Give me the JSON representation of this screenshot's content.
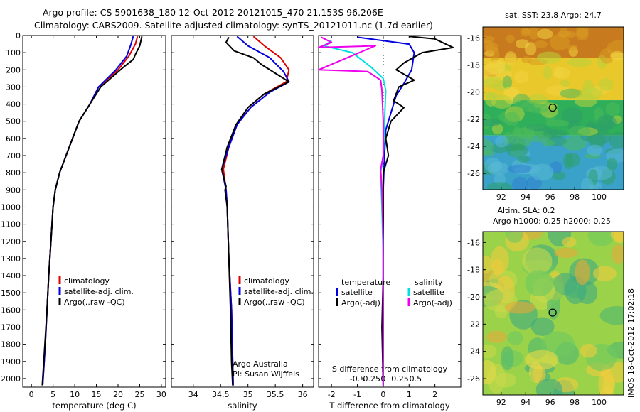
{
  "header": {
    "line1": "Argo profile: CS 5901638_180 12-Oct-2012 20121015_470 21.153S 96.206E",
    "line2": "Climatology: CARS2009. Satellite-adjusted climatology: synTS_20121011.nc (1.7d earlier)"
  },
  "stamp": "IMOS 18-Oct-2012 17:02:18",
  "chart_data": [
    {
      "type": "line",
      "panel": "temperature",
      "xlabel": "temperature (deg C)",
      "ylabel": "",
      "xlim": [
        -2,
        31
      ],
      "ylim": [
        2050,
        0
      ],
      "x_ticks": [
        0,
        5,
        10,
        15,
        20,
        25,
        30
      ],
      "y_ticks": [
        0,
        100,
        200,
        300,
        400,
        500,
        600,
        700,
        800,
        900,
        1000,
        1100,
        1200,
        1300,
        1400,
        1500,
        1600,
        1700,
        1800,
        1900,
        2000
      ],
      "legend": [
        "climatology",
        "satellite-adj. clim.",
        "Argo(..raw -QC)"
      ],
      "legend_position": "bottom-center",
      "series": [
        {
          "name": "climatology",
          "color": "#e00000",
          "points": [
            [
              24.5,
              5
            ],
            [
              24,
              50
            ],
            [
              22.5,
              120
            ],
            [
              20,
              200
            ],
            [
              15.5,
              300
            ],
            [
              13.5,
              400
            ],
            [
              11,
              500
            ],
            [
              9.5,
              600
            ],
            [
              8,
              700
            ],
            [
              6.5,
              800
            ],
            [
              5.5,
              900
            ],
            [
              5,
              1000
            ],
            [
              4.5,
              1200
            ],
            [
              4,
              1400
            ],
            [
              3.6,
              1600
            ],
            [
              3.2,
              1800
            ],
            [
              2.6,
              2040
            ]
          ]
        },
        {
          "name": "satellite-adj. clim.",
          "color": "#0000e0",
          "points": [
            [
              23.5,
              5
            ],
            [
              23,
              50
            ],
            [
              22,
              120
            ],
            [
              19.5,
              200
            ],
            [
              15.5,
              300
            ],
            [
              13.5,
              400
            ],
            [
              11,
              500
            ],
            [
              9.5,
              600
            ],
            [
              8,
              700
            ],
            [
              6.5,
              800
            ],
            [
              5.5,
              900
            ],
            [
              5,
              1000
            ],
            [
              4.5,
              1200
            ],
            [
              4,
              1400
            ],
            [
              3.6,
              1600
            ],
            [
              3.2,
              1800
            ],
            [
              2.6,
              2040
            ]
          ]
        },
        {
          "name": "Argo(..raw -QC)",
          "color": "#000000",
          "points": [
            [
              25.5,
              5
            ],
            [
              25,
              60
            ],
            [
              24,
              110
            ],
            [
              23.5,
              140
            ],
            [
              21,
              190
            ],
            [
              16,
              300
            ],
            [
              13.5,
              400
            ],
            [
              11,
              500
            ],
            [
              9.5,
              600
            ],
            [
              8,
              700
            ],
            [
              6.5,
              800
            ],
            [
              5.5,
              900
            ],
            [
              5,
              1000
            ],
            [
              4.5,
              1200
            ],
            [
              4,
              1400
            ],
            [
              3.6,
              1600
            ],
            [
              3.1,
              1800
            ],
            [
              2.5,
              2040
            ]
          ]
        }
      ]
    },
    {
      "type": "line",
      "panel": "salinity",
      "xlabel": "salinity",
      "ylabel": "",
      "xlim": [
        33.6,
        36.2
      ],
      "ylim": [
        2050,
        0
      ],
      "x_ticks": [
        34,
        34.5,
        35,
        35.5,
        36
      ],
      "legend": [
        "climatology",
        "satellite-adj. clim.",
        "Argo(..raw -QC)"
      ],
      "legend_position": "bottom-center",
      "annotation": [
        "Argo Australia",
        "PI: Susan Wijffels"
      ],
      "series": [
        {
          "name": "climatology",
          "color": "#e00000",
          "points": [
            [
              35.1,
              5
            ],
            [
              35.3,
              60
            ],
            [
              35.6,
              130
            ],
            [
              35.75,
              200
            ],
            [
              35.7,
              270
            ],
            [
              35.3,
              340
            ],
            [
              35,
              420
            ],
            [
              34.8,
              520
            ],
            [
              34.65,
              650
            ],
            [
              34.55,
              780
            ],
            [
              34.6,
              900
            ],
            [
              34.62,
              1000
            ],
            [
              34.65,
              1300
            ],
            [
              34.7,
              1600
            ],
            [
              34.72,
              1900
            ],
            [
              34.73,
              2040
            ]
          ]
        },
        {
          "name": "satellite-adj. clim.",
          "color": "#0000e0",
          "points": [
            [
              34.8,
              5
            ],
            [
              35.0,
              60
            ],
            [
              35.4,
              130
            ],
            [
              35.65,
              210
            ],
            [
              35.75,
              270
            ],
            [
              35.4,
              330
            ],
            [
              35.05,
              420
            ],
            [
              34.8,
              520
            ],
            [
              34.65,
              650
            ],
            [
              34.52,
              780
            ],
            [
              34.6,
              900
            ],
            [
              34.62,
              1000
            ],
            [
              34.65,
              1300
            ],
            [
              34.7,
              1600
            ],
            [
              34.72,
              1900
            ],
            [
              34.73,
              2040
            ]
          ]
        },
        {
          "name": "Argo(..raw -QC)",
          "color": "#000000",
          "points": [
            [
              34.65,
              10
            ],
            [
              34.6,
              40
            ],
            [
              34.75,
              90
            ],
            [
              35.1,
              130
            ],
            [
              35.25,
              170
            ],
            [
              35.5,
              220
            ],
            [
              35.75,
              270
            ],
            [
              35.3,
              340
            ],
            [
              35.0,
              420
            ],
            [
              34.78,
              520
            ],
            [
              34.62,
              650
            ],
            [
              34.52,
              780
            ],
            [
              34.6,
              880
            ],
            [
              34.58,
              900
            ],
            [
              34.62,
              1000
            ],
            [
              34.65,
              1300
            ],
            [
              34.68,
              1600
            ],
            [
              34.7,
              1900
            ],
            [
              34.72,
              2040
            ]
          ]
        }
      ]
    },
    {
      "type": "line",
      "panel": "difference",
      "xlabel": "T difference from climatology",
      "xlabel_top": "S difference from climatology",
      "xlim": [
        -2.5,
        3.0
      ],
      "ylim": [
        2050,
        0
      ],
      "x_ticks_T": [
        -2,
        -1,
        0,
        1,
        2
      ],
      "x_ticks_S": [
        -0.5,
        -0.25,
        0,
        0.25,
        0.5
      ],
      "legend_temperature": {
        "header": "temperature",
        "items": [
          "satellite",
          "Argo(-adj)"
        ]
      },
      "legend_salinity": {
        "header": "salinity",
        "items": [
          "satellite",
          "Argo(-adj)"
        ]
      },
      "series": [
        {
          "name": "temperature satellite",
          "color": "#0000e0",
          "points": [
            [
              -1,
              10
            ],
            [
              1,
              50
            ],
            [
              1.2,
              100
            ],
            [
              1.1,
              200
            ],
            [
              0.8,
              280
            ],
            [
              0.5,
              350
            ],
            [
              0.3,
              450
            ],
            [
              0.1,
              550
            ],
            [
              0.05,
              700
            ],
            [
              0,
              900
            ],
            [
              0,
              1200
            ],
            [
              0,
              1600
            ],
            [
              0,
              2040
            ]
          ]
        },
        {
          "name": "temperature Argo(-adj)",
          "color": "#000000",
          "points": [
            [
              1,
              5
            ],
            [
              2,
              20
            ],
            [
              2.7,
              70
            ],
            [
              1.5,
              100
            ],
            [
              0.8,
              160
            ],
            [
              0.5,
              200
            ],
            [
              1.2,
              260
            ],
            [
              0.6,
              300
            ],
            [
              0.4,
              380
            ],
            [
              0.8,
              420
            ],
            [
              0.3,
              500
            ],
            [
              0.1,
              600
            ],
            [
              0.2,
              700
            ],
            [
              0,
              800
            ],
            [
              0,
              1000
            ],
            [
              0,
              1400
            ],
            [
              -0.05,
              1700
            ],
            [
              0,
              2040
            ]
          ]
        },
        {
          "name": "salinity satellite",
          "color": "#00e0e0",
          "points": [
            [
              -2,
              30
            ],
            [
              -2.3,
              60
            ],
            [
              -1.2,
              100
            ],
            [
              -0.5,
              180
            ],
            [
              0,
              250
            ],
            [
              0.1,
              320
            ],
            [
              0.05,
              500
            ],
            [
              0,
              700
            ],
            [
              -0.1,
              800
            ],
            [
              -0.05,
              1000
            ],
            [
              0,
              1300
            ],
            [
              0,
              1600
            ],
            [
              0,
              2040
            ]
          ]
        },
        {
          "name": "salinity Argo(-adj)",
          "color": "#ee00ee",
          "points": [
            [
              -2.4,
              10
            ],
            [
              -2,
              40
            ],
            [
              -2.5,
              70
            ],
            [
              -0.3,
              60
            ],
            [
              -2.5,
              200
            ],
            [
              -0.6,
              210
            ],
            [
              -0.1,
              260
            ],
            [
              -0.05,
              320
            ],
            [
              0,
              500
            ],
            [
              0,
              700
            ],
            [
              -0.1,
              780
            ],
            [
              -0.05,
              900
            ],
            [
              0,
              1200
            ],
            [
              0,
              1600
            ],
            [
              0,
              2040
            ]
          ]
        }
      ]
    },
    {
      "type": "heatmap",
      "panel": "sst-map",
      "title": "sat. SST: 23.8 Argo: 24.7",
      "xlim": [
        90.5,
        102
      ],
      "ylim": [
        -27.2,
        -15.2
      ],
      "x_ticks": [
        92,
        94,
        96,
        98,
        100
      ],
      "y_ticks": [
        -16,
        -18,
        -20,
        -22,
        -24,
        -26
      ],
      "marker": [
        96.2,
        -21.15
      ],
      "bands": [
        {
          "from": -15.2,
          "to": -17.5,
          "color": "#c87a1e"
        },
        {
          "from": -17.5,
          "to": -20.6,
          "color": "#e8c82a"
        },
        {
          "from": -20.6,
          "to": -23.2,
          "color": "#2faf5a"
        },
        {
          "from": -23.2,
          "to": -27.2,
          "color": "#3aa2c8"
        }
      ]
    },
    {
      "type": "heatmap",
      "panel": "sla-map",
      "title": "Altim. SLA: 0.2",
      "subtitle": "Argo h1000: 0.25 h2000: 0.25",
      "xlim": [
        90.5,
        102
      ],
      "ylim": [
        -27.2,
        -15.2
      ],
      "x_ticks": [
        92,
        94,
        96,
        98,
        100
      ],
      "y_ticks": [
        -16,
        -18,
        -20,
        -22,
        -24,
        -26
      ],
      "marker": [
        96.2,
        -21.15
      ],
      "base_color": "#9ad24a"
    }
  ]
}
